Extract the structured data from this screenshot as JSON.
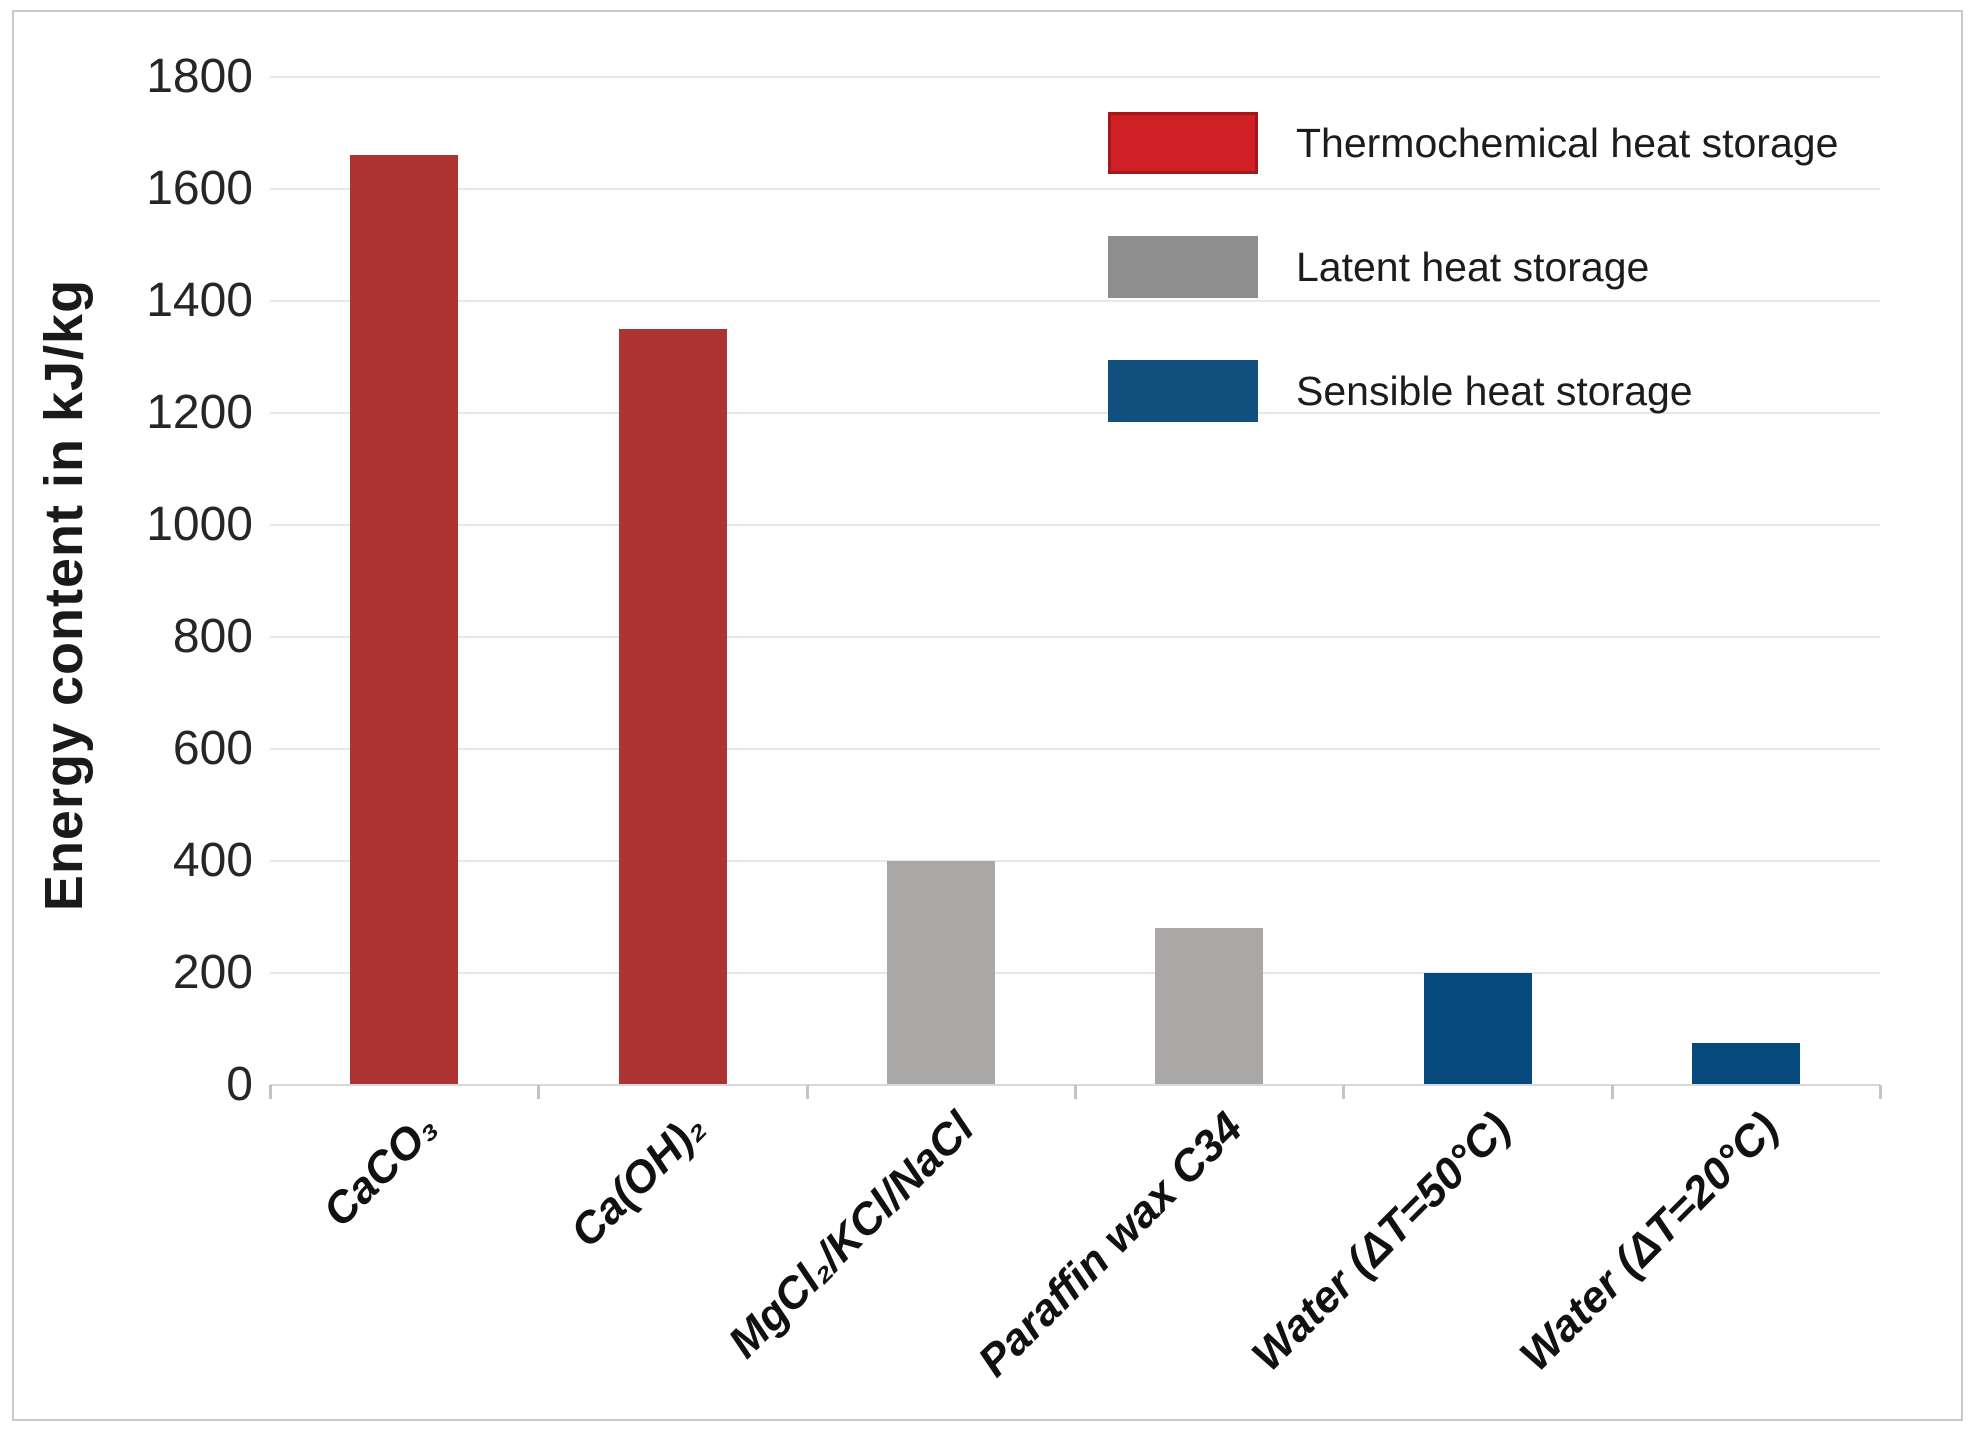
{
  "figure": {
    "background_color": "#ffffff",
    "frame_border_color": "#c9c9c9"
  },
  "chart_data": {
    "type": "bar",
    "title": "",
    "xlabel": "",
    "ylabel": "Energy content in kJ/kg",
    "ylim": [
      0,
      1800
    ],
    "ytick_interval": 200,
    "yticks_top_to_bottom": [
      "1800",
      "1600",
      "1400",
      "1200",
      "1000",
      "800",
      "600",
      "400",
      "200",
      "0"
    ],
    "grid": "horizontal",
    "gridline_color": "#e7e7e7",
    "legend_position": "top-right-inside",
    "categories": [
      "CaCO₃",
      "Ca(OH)₂",
      "MgCl₂/KCl/NaCl",
      "Paraffin wax C34",
      "Water (ΔT=50°C)",
      "Water (ΔT=20°C)"
    ],
    "values": [
      1660,
      1350,
      400,
      280,
      200,
      75
    ],
    "bars": [
      {
        "category": "CaCO₃",
        "value": 1660,
        "series": "Thermochemical heat storage"
      },
      {
        "category": "Ca(OH)₂",
        "value": 1350,
        "series": "Thermochemical heat storage"
      },
      {
        "category": "MgCl₂/KCl/NaCl",
        "value": 400,
        "series": "Latent heat storage"
      },
      {
        "category": "Paraffin wax C34",
        "value": 280,
        "series": "Latent heat storage"
      },
      {
        "category": "Water (ΔT=50°C)",
        "value": 200,
        "series": "Sensible heat storage"
      },
      {
        "category": "Water (ΔT=20°C)",
        "value": 75,
        "series": "Sensible heat storage"
      }
    ],
    "series": [
      {
        "name": "Thermochemical heat storage",
        "bar_color": "#ae3433",
        "legend_color": "#d02025",
        "values": [
          1660,
          1350,
          null,
          null,
          null,
          null
        ]
      },
      {
        "name": "Latent heat storage",
        "bar_color": "#a9a8a6",
        "legend_color": "#8e8e8e",
        "values": [
          null,
          null,
          400,
          280,
          null,
          null
        ]
      },
      {
        "name": "Sensible heat storage",
        "bar_color": "#06497c",
        "legend_color": "#11507f",
        "values": [
          null,
          null,
          null,
          null,
          200,
          75
        ]
      }
    ],
    "legend": [
      {
        "label": "Thermochemical heat storage",
        "color": "#d02025"
      },
      {
        "label": "Latent heat storage",
        "color": "#8e8e8e"
      },
      {
        "label": "Sensible heat storage",
        "color": "#11507f"
      }
    ]
  }
}
